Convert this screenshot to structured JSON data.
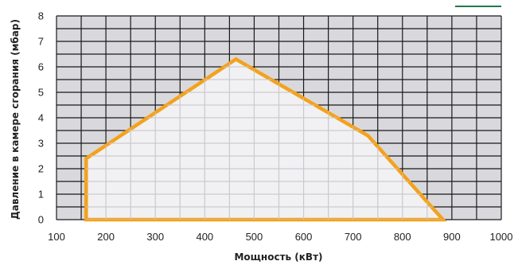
{
  "chart_data": {
    "type": "area",
    "xlabel": "Мощность (кВт)",
    "ylabel": "Давление в камере сгорания (мбар)",
    "xlim": [
      100,
      1000
    ],
    "ylim": [
      0,
      8
    ],
    "x_ticks": [
      100,
      200,
      300,
      400,
      500,
      600,
      700,
      800,
      900,
      1000
    ],
    "y_ticks": [
      0,
      1,
      2,
      3,
      4,
      5,
      6,
      7,
      8
    ],
    "grid": true,
    "series": [
      {
        "x": [
          160,
          160,
          463,
          730,
          882,
          160
        ],
        "y": [
          0,
          2.4,
          6.3,
          3.3,
          0,
          0
        ],
        "color": "#f4a21c",
        "fill": "#f4f4f6"
      }
    ]
  },
  "colors": {
    "plot_background": "#d9d9dd",
    "grid": "#1a1a1a",
    "corner_line": "#1f7a4a"
  }
}
